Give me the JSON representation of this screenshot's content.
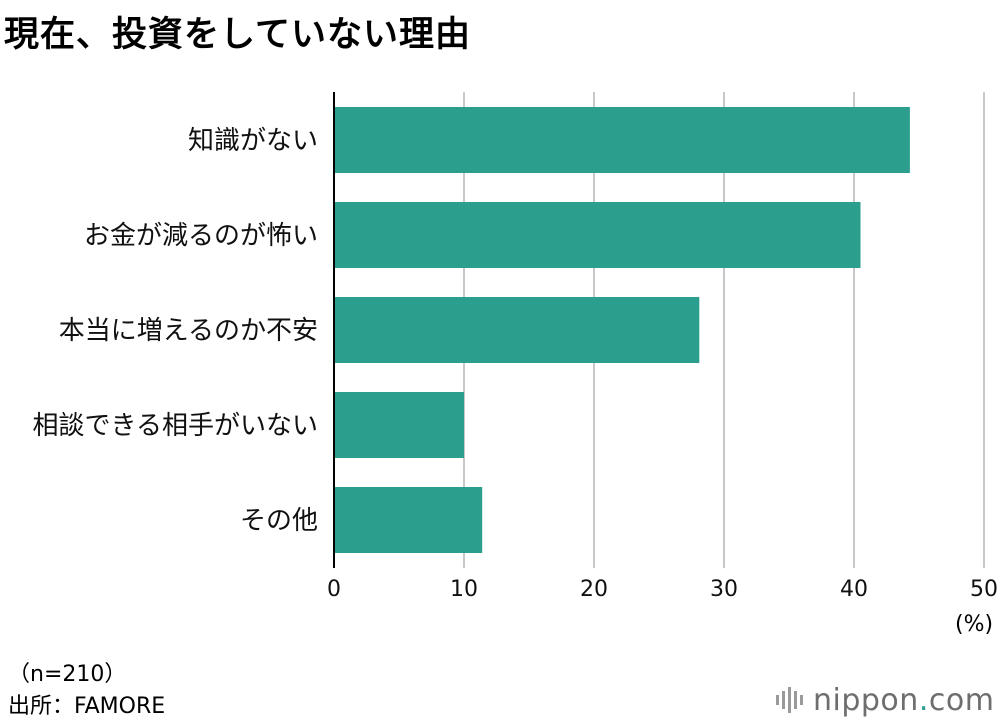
{
  "title": "現在、投資をしていない理由",
  "unit_label": "(%)",
  "sample_note": "（n=210）",
  "source_note": "出所：FAMORE",
  "brand": {
    "name": "nippon",
    "dot": ".",
    "suffix": "com",
    "icon": "soundwave-logo-icon"
  },
  "colors": {
    "bar": "#2c9e8e",
    "grid": "#c8c8c8",
    "axis": "#000000"
  },
  "chart_data": {
    "type": "bar",
    "orientation": "horizontal",
    "title": "現在、投資をしていない理由",
    "categories": [
      "知識がない",
      "お金が減るのが怖い",
      "本当に増えるのか不安",
      "相談できる相手がいない",
      "その他"
    ],
    "values": [
      44.3,
      40.5,
      28.1,
      10.0,
      11.4
    ],
    "xlim": [
      0,
      50
    ],
    "xticks": [
      "0",
      "10",
      "20",
      "30",
      "40",
      "50"
    ],
    "xlabel": "(%)",
    "ylabel": "",
    "grid": "vertical",
    "legend": "none"
  }
}
